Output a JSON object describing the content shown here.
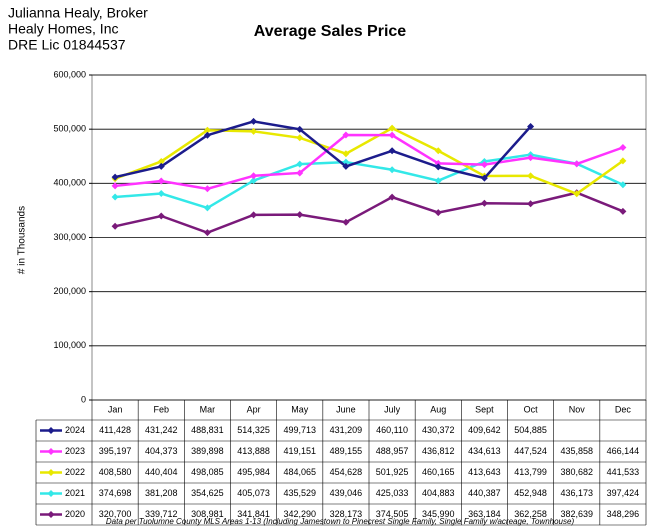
{
  "chart_data": {
    "type": "line",
    "title": "Average Sales Price",
    "header": [
      "Julianna Healy, Broker",
      "Healy Homes, Inc",
      "DRE Lic 01844537"
    ],
    "ylabel": "# in Thousands",
    "footnote": "Data per Tuolumne County MLS Areas 1-13 (Including Jamestown to Pinecrest Single Family, Single Family w/acreage, Townhouse)",
    "categories": [
      "Jan",
      "Feb",
      "Mar",
      "Apr",
      "May",
      "June",
      "July",
      "Aug",
      "Sept",
      "Oct",
      "Nov",
      "Dec"
    ],
    "ylim": [
      0,
      600000
    ],
    "yticks": [
      0,
      {
        "value": 100000,
        "label": "100,000"
      },
      {
        "value": 200000,
        "label": "200,000"
      },
      {
        "value": 300000,
        "label": "300,000"
      },
      {
        "value": 400000,
        "label": "400,000"
      },
      {
        "value": 500000,
        "label": "500,000"
      },
      {
        "value": 600000,
        "label": "600,000"
      }
    ],
    "grid": true,
    "series": [
      {
        "name": "2024",
        "color": "#1c1c8c",
        "values": [
          411428,
          431242,
          488831,
          514325,
          499713,
          431209,
          460110,
          430372,
          409642,
          504885,
          null,
          null
        ],
        "value_labels": [
          "411,428",
          "431,242",
          "488,831",
          "514,325",
          "499,713",
          "431,209",
          "460,110",
          "430,372",
          "409,642",
          "504,885",
          null,
          null
        ]
      },
      {
        "name": "2023",
        "color": "#ff33ff",
        "values": [
          395197,
          404373,
          389898,
          413888,
          419151,
          489155,
          488957,
          436812,
          434613,
          447524,
          435858,
          466144
        ],
        "value_labels": [
          "395,197",
          "404,373",
          "389,898",
          "413,888",
          "419,151",
          "489,155",
          "488,957",
          "436,812",
          "434,613",
          "447,524",
          "435,858",
          "466,144"
        ]
      },
      {
        "name": "2022",
        "color": "#e8e800",
        "values": [
          408580,
          440404,
          498085,
          495984,
          484065,
          454628,
          501925,
          460165,
          413643,
          413799,
          380682,
          441533
        ],
        "value_labels": [
          "408,580",
          "440,404",
          "498,085",
          "495,984",
          "484,065",
          "454,628",
          "501,925",
          "460,165",
          "413,643",
          "413,799",
          "380,682",
          "441,533"
        ]
      },
      {
        "name": "2021",
        "color": "#33e8e8",
        "values": [
          374698,
          381208,
          354625,
          405073,
          435529,
          439046,
          425033,
          404883,
          440387,
          452948,
          436173,
          397424
        ],
        "value_labels": [
          "374,698",
          "381,208",
          "354,625",
          "405,073",
          "435,529",
          "439,046",
          "425,033",
          "404,883",
          "440,387",
          "452,948",
          "436,173",
          "397,424"
        ]
      },
      {
        "name": "2020",
        "color": "#7a1a7a",
        "values": [
          320700,
          339712,
          308981,
          341841,
          342290,
          328173,
          374505,
          345990,
          363184,
          362258,
          382639,
          348296
        ],
        "value_labels": [
          "320,700",
          "339,712",
          "308,981",
          "341,841",
          "342,290",
          "328,173",
          "374,505",
          "345,990",
          "363,184",
          "362,258",
          "382,639",
          "348,296"
        ]
      }
    ]
  }
}
